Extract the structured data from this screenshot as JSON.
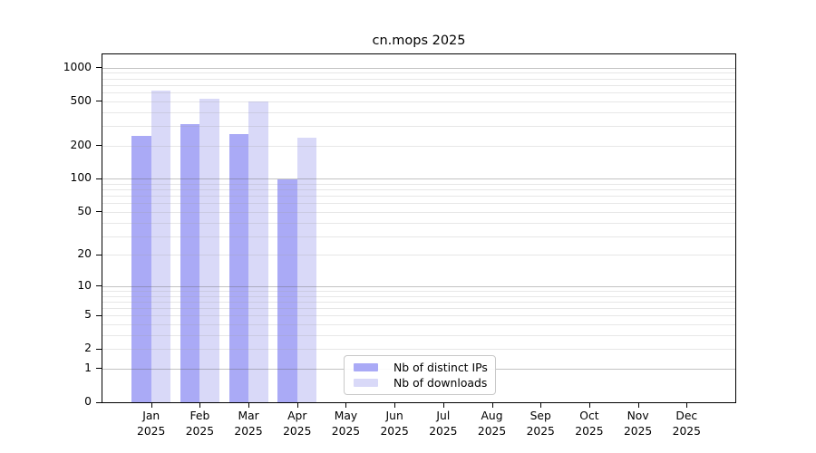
{
  "chart_data": {
    "type": "bar",
    "title": "cn.mops 2025",
    "x_categories": [
      "Jan",
      "Feb",
      "Mar",
      "Apr",
      "May",
      "Jun",
      "Jul",
      "Aug",
      "Sep",
      "Oct",
      "Nov",
      "Dec"
    ],
    "x_year_label": "2025",
    "series": [
      {
        "name": "Nb of distinct IPs",
        "color": "#aaaaf6",
        "values": [
          245,
          310,
          255,
          98,
          null,
          null,
          null,
          null,
          null,
          null,
          null,
          null
        ]
      },
      {
        "name": "Nb of downloads",
        "color": "#d9d9f8",
        "values": [
          620,
          530,
          500,
          235,
          null,
          null,
          null,
          null,
          null,
          null,
          null,
          null
        ]
      }
    ],
    "y_scale": "log10(value+1)",
    "y_ticks": [
      0,
      1,
      2,
      5,
      10,
      20,
      50,
      100,
      200,
      500,
      1000
    ],
    "y_major_gridlines": [
      1,
      10,
      100,
      1000
    ],
    "ylim": [
      0,
      1320
    ],
    "grid": "on",
    "grid_above_bars": true,
    "legend_position": "inside-bottom-center-left",
    "colors": {
      "axis": "#000000",
      "major_grid_on_white": "#c2c2c2",
      "minor_grid_on_white": "#e7e7e7",
      "legend_border": "#c9c9c9",
      "background": "#ffffff"
    }
  }
}
